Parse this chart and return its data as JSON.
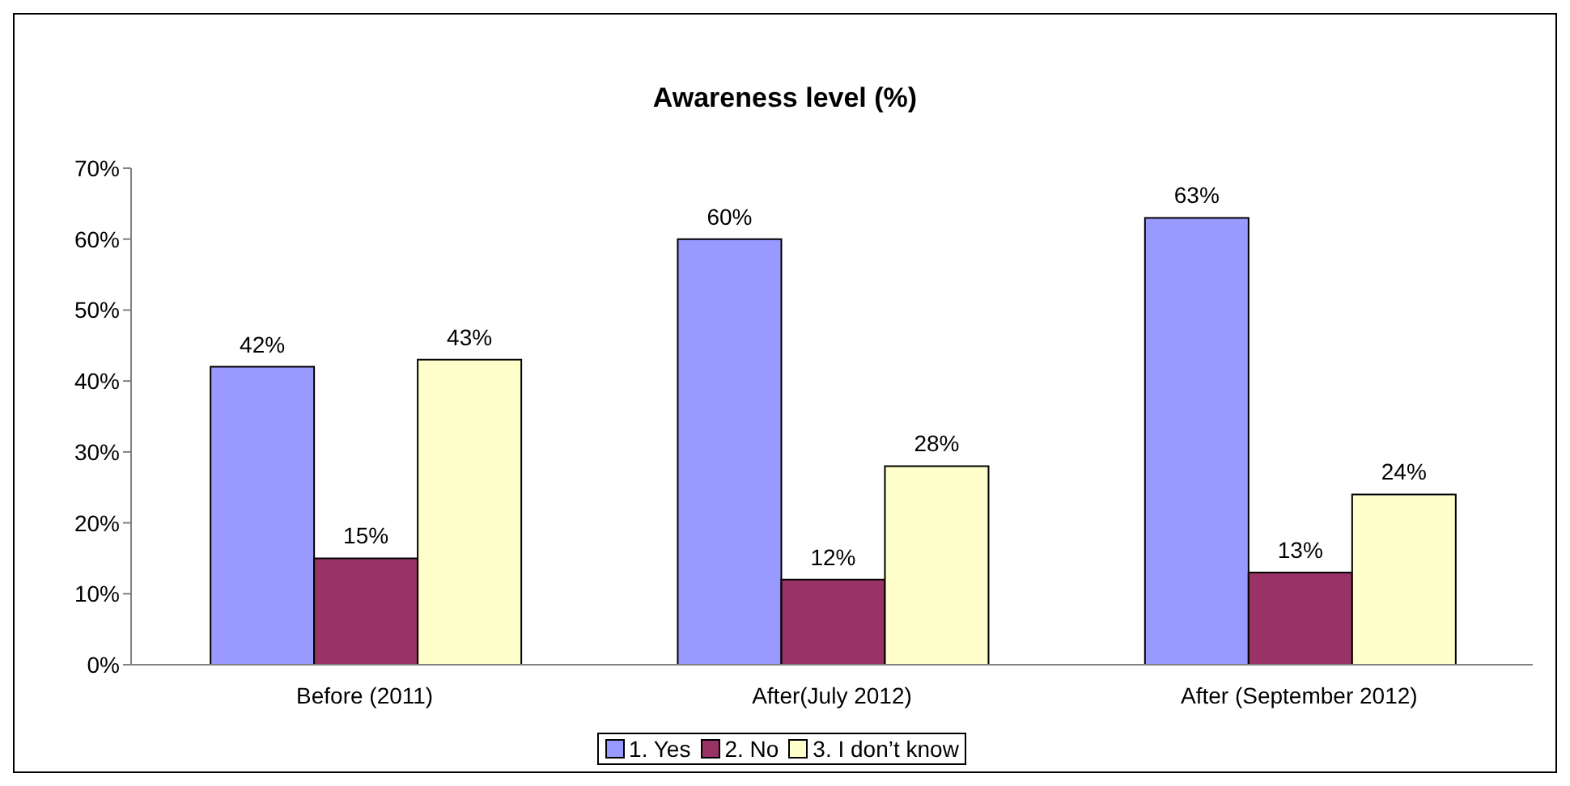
{
  "chart_data": {
    "type": "bar",
    "title": "Awareness level (%)",
    "categories": [
      "Before (2011)",
      "After(July 2012)",
      "After (September 2012)"
    ],
    "series": [
      {
        "name": "1. Yes",
        "color": "#9999ff",
        "values": [
          42,
          60,
          63
        ],
        "value_labels": [
          "42%",
          "60%",
          "63%"
        ]
      },
      {
        "name": "2. No",
        "color": "#993366",
        "values": [
          15,
          12,
          13
        ],
        "value_labels": [
          "15%",
          "12%",
          "13%"
        ]
      },
      {
        "name": "3. I don’t know",
        "color": "#ffffcc",
        "values": [
          43,
          28,
          24
        ],
        "value_labels": [
          "43%",
          "28%",
          "24%"
        ]
      }
    ],
    "ylim": [
      0,
      70
    ],
    "yticks": [
      {
        "value": 0,
        "label": "0%"
      },
      {
        "value": 10,
        "label": "10%"
      },
      {
        "value": 20,
        "label": "20%"
      },
      {
        "value": 30,
        "label": "30%"
      },
      {
        "value": 40,
        "label": "40%"
      },
      {
        "value": 50,
        "label": "50%"
      },
      {
        "value": 60,
        "label": "60%"
      },
      {
        "value": 70,
        "label": "70%"
      }
    ],
    "grid": false,
    "legend": "bottom"
  }
}
